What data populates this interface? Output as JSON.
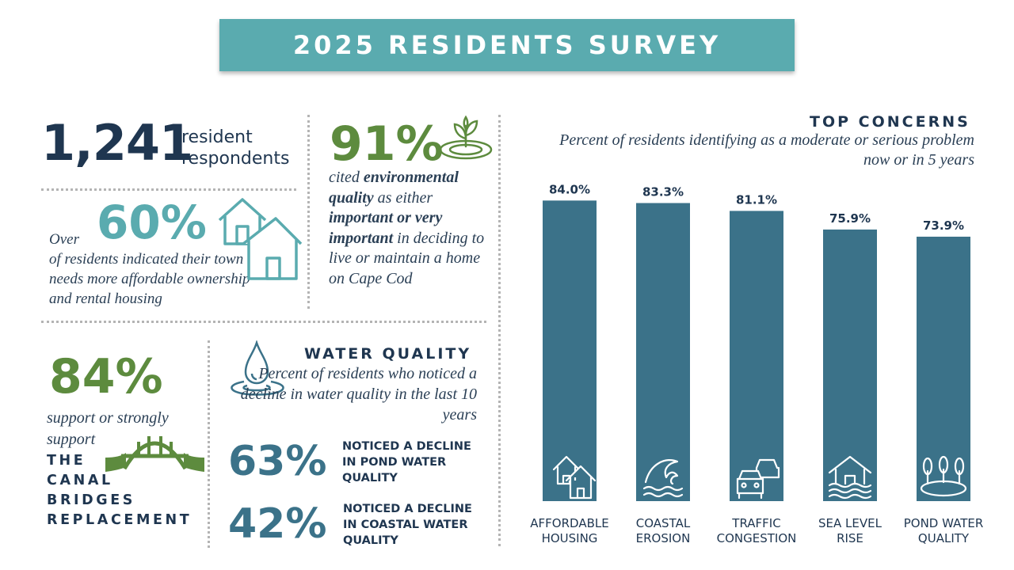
{
  "title": "2025 RESIDENTS SURVEY",
  "respondents": {
    "count": "1,241",
    "label_line1": "resident",
    "label_line2": "respondents"
  },
  "housing": {
    "prefix": "Over",
    "percent": "60%",
    "text": "of residents indicated their town needs more affordable ownership and rental housing"
  },
  "environment": {
    "percent": "91%",
    "t1": "cited ",
    "b1": "environmental quality",
    "t2": " as either ",
    "b2": "important or very important",
    "t3": " in deciding to live or maintain a home on Cape Cod"
  },
  "bridge": {
    "percent": "84%",
    "support_text": "support or strongly support",
    "line1": "THE",
    "line2": "CANAL",
    "line3": "BRIDGES",
    "line4": "REPLACEMENT"
  },
  "water_quality": {
    "heading": "WATER QUALITY",
    "subtitle": "Percent of residents who noticed a decline in water quality in the last 10 years",
    "pond_percent": "63%",
    "pond_label": "NOTICED A DECLINE IN POND WATER QUALITY",
    "coastal_percent": "42%",
    "coastal_label": "NOTICED A DECLINE IN COASTAL WATER QUALITY"
  },
  "colors": {
    "teal": "#5aabaf",
    "navy": "#1f3650",
    "green": "#5d8b3e",
    "bar": "#3b7289"
  },
  "chart_data": {
    "type": "bar",
    "title": "TOP CONCERNS",
    "subtitle": "Percent of residents identifying as a moderate or serious problem now or in 5 years",
    "categories": [
      "AFFORDABLE HOUSING",
      "COASTAL EROSION",
      "TRAFFIC CONGESTION",
      "SEA LEVEL RISE",
      "POND WATER QUALITY"
    ],
    "category_lines": [
      [
        "AFFORDABLE",
        "HOUSING"
      ],
      [
        "COASTAL",
        "EROSION"
      ],
      [
        "TRAFFIC",
        "CONGESTION"
      ],
      [
        "SEA LEVEL",
        "RISE"
      ],
      [
        "POND WATER",
        "QUALITY"
      ]
    ],
    "values": [
      84.0,
      83.3,
      81.1,
      75.9,
      73.9
    ],
    "data_labels": [
      "84.0%",
      "83.3%",
      "81.1%",
      "75.9%",
      "73.9%"
    ],
    "icons": [
      "houses-icon",
      "wave-icon",
      "cars-icon",
      "flooded-house-icon",
      "pond-trees-icon"
    ],
    "ylim": [
      0,
      100
    ],
    "grid": false,
    "legend": "none"
  }
}
